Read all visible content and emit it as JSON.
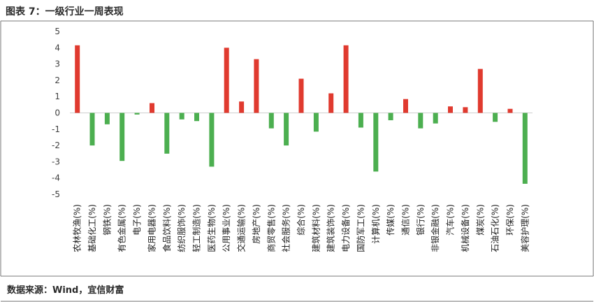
{
  "header": {
    "title": "图表 7：一级行业一周表现"
  },
  "footer": {
    "source": "数据来源：Wind，宜信财富"
  },
  "colors": {
    "positive": "#e03a2f",
    "negative": "#4caf50",
    "frame": "#7a7a7a",
    "axis": "#d0d0d0"
  },
  "chart_data": {
    "type": "bar",
    "title": "图表 7：一级行业一周表现",
    "xlabel": "",
    "ylabel": "",
    "ylim": [
      -5,
      5
    ],
    "yticks": [
      5,
      4,
      3,
      2,
      1,
      0,
      -1,
      -2,
      -3,
      -4,
      -5
    ],
    "grid": false,
    "legend": "none",
    "categories": [
      "农林牧渔(%)",
      "基础化工(%)",
      "钢铁(%)",
      "有色金属(%)",
      "电子(%)",
      "家用电器(%)",
      "食品饮料(%)",
      "纺织服饰(%)",
      "轻工制造(%)",
      "医药生物(%)",
      "公用事业(%)",
      "交通运输(%)",
      "房地产(%)",
      "商贸零售(%)",
      "社会服务(%)",
      "综合(%)",
      "建筑材料(%)",
      "建筑装饰(%)",
      "电力设备(%)",
      "国防军工(%)",
      "计算机(%)",
      "传媒(%)",
      "通信(%)",
      "银行(%)",
      "非银金融(%)",
      "汽车(%)",
      "机械设备(%)",
      "煤炭(%)",
      "石油石化(%)",
      "环保(%)",
      "美容护理(%)"
    ],
    "values": [
      4.15,
      -2.0,
      -0.7,
      -2.95,
      -0.1,
      0.6,
      -2.5,
      -0.4,
      -0.5,
      -3.3,
      4.0,
      0.7,
      3.3,
      -0.95,
      -2.0,
      2.1,
      -1.15,
      1.2,
      4.15,
      -0.9,
      -3.6,
      -0.45,
      0.85,
      -0.95,
      -0.65,
      0.4,
      0.35,
      2.7,
      -0.55,
      0.25,
      -4.35
    ]
  }
}
